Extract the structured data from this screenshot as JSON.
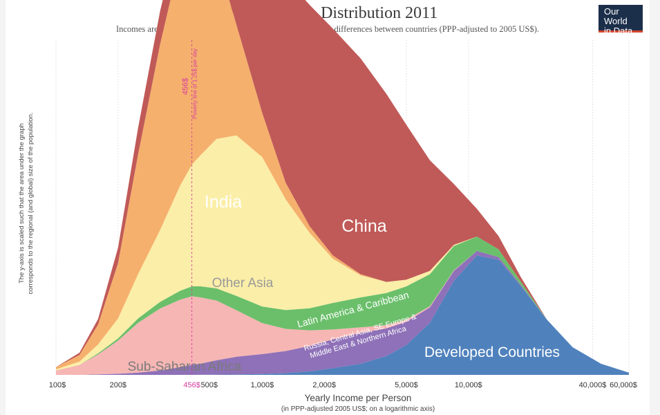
{
  "title": "Global Income Distribution 2011",
  "subtitle": "Incomes are adjusted for price changes over time and for price differences between countries (PPP-adjusted to 2005 US$).",
  "logo": {
    "line1": "Our World",
    "line2": "in Data"
  },
  "ylabel_line1": "The y-axis is scaled such that the area under the graph",
  "ylabel_line2": "corresponds to the regional (and global) size of the population.",
  "xlabel": "Yearly Income per Person",
  "xlabel_sub": "(in PPP-adjusted 2005 US$; on a logarithmic axis)",
  "poverty_line": {
    "value": 456,
    "label": "456$",
    "description": "Poverty line of 1.25$ per day",
    "tick_label": "456$",
    "color": "#d63ca0"
  },
  "chart_data": {
    "type": "area",
    "stacked": true,
    "x_scale": "log",
    "xlim": [
      100,
      60000
    ],
    "x_ticks": [
      {
        "value": 100,
        "label": "100$"
      },
      {
        "value": 200,
        "label": "200$"
      },
      {
        "value": 500,
        "label": "500$"
      },
      {
        "value": 1000,
        "label": "1,000$"
      },
      {
        "value": 2000,
        "label": "2,000$"
      },
      {
        "value": 5000,
        "label": "5,000$"
      },
      {
        "value": 10000,
        "label": "10,000$"
      },
      {
        "value": 40000,
        "label": "40,000$"
      },
      {
        "value": 60000,
        "label": "60,000$"
      }
    ],
    "grid": "vertical",
    "y_axis_labels": false,
    "x": [
      100,
      130,
      160,
      200,
      250,
      320,
      400,
      456,
      500,
      600,
      750,
      1000,
      1300,
      1700,
      2200,
      3000,
      4000,
      5000,
      6500,
      8500,
      11000,
      14000,
      18000,
      24000,
      32000,
      44000,
      60000
    ],
    "series": [
      {
        "name": "Developed Countries",
        "color": "#4f81bd",
        "label_color": "#ffffff",
        "values": [
          0,
          0,
          0,
          0,
          0,
          0,
          0,
          0,
          0.1,
          0.2,
          0.4,
          0.8,
          1.6,
          3.2,
          6,
          10,
          17,
          27,
          47,
          85,
          108,
          104,
          80,
          50,
          25,
          10,
          2
        ]
      },
      {
        "name": "Russia, Central Asia, SE Europe & Middle East & Northern Africa",
        "color": "#8e71b8",
        "label_color": "#ffffff",
        "values": [
          0,
          0,
          0.5,
          1,
          2,
          4,
          7,
          9,
          10,
          13,
          16,
          18,
          20,
          23,
          26,
          28,
          25,
          21,
          14,
          9,
          4,
          2.5,
          1,
          0,
          0,
          0,
          0
        ]
      },
      {
        "name": "Sub-Saharan Africa",
        "color": "#f6b6b4",
        "label_color": "#7a7a7a",
        "values": [
          4,
          9,
          18,
          30,
          45,
          56,
          61,
          62,
          60,
          54,
          42,
          28,
          20,
          14,
          9,
          5,
          3,
          2,
          1,
          0.5,
          0,
          0,
          0,
          0,
          0,
          0,
          0
        ]
      },
      {
        "name": "Latin America & Caribbean",
        "color": "#6bbf6b",
        "label_color": "#ffffff",
        "values": [
          0,
          0,
          1,
          2,
          4,
          6,
          8,
          9,
          10,
          11,
          13,
          15,
          17,
          20,
          24,
          27,
          29,
          30,
          29,
          22,
          13,
          7,
          3,
          0,
          0,
          0,
          0
        ]
      },
      {
        "name": "Other Asia",
        "color": "#fbeea8",
        "label_color": "#9a9a9a",
        "values": [
          1,
          3,
          8,
          18,
          40,
          65,
          95,
          110,
          118,
          135,
          145,
          135,
          100,
          68,
          40,
          20,
          10,
          6,
          3,
          1,
          0,
          0,
          0,
          0,
          0,
          0,
          0
        ]
      },
      {
        "name": "India",
        "color": "#f5b06d",
        "label_color": "#ffffff",
        "values": [
          2,
          6,
          18,
          50,
          108,
          168,
          205,
          208,
          200,
          165,
          100,
          40,
          15,
          6,
          3,
          1,
          0,
          0,
          0,
          0,
          0,
          0,
          0,
          0,
          0,
          0,
          0
        ]
      },
      {
        "name": "China",
        "color": "#c05a58",
        "label_color": "#ffffff",
        "values": [
          0,
          2,
          5,
          14,
          24,
          30,
          28,
          27,
          32,
          60,
          105,
          165,
          185,
          200,
          205,
          195,
          170,
          140,
          100,
          55,
          25,
          12,
          4,
          0,
          0,
          0,
          0
        ]
      }
    ],
    "labels": {
      "India": "India",
      "China": "China",
      "Other Asia": "Other Asia",
      "Latin America & Caribbean": "Latin America & Caribbean",
      "russia_line1": "Russia, Central Asia, SE Europe &",
      "russia_line2": "Middle East & Northern Africa",
      "Sub-Saharan Africa": "Sub-Saharan Africa",
      "Developed Countries": "Developed Countries"
    }
  }
}
